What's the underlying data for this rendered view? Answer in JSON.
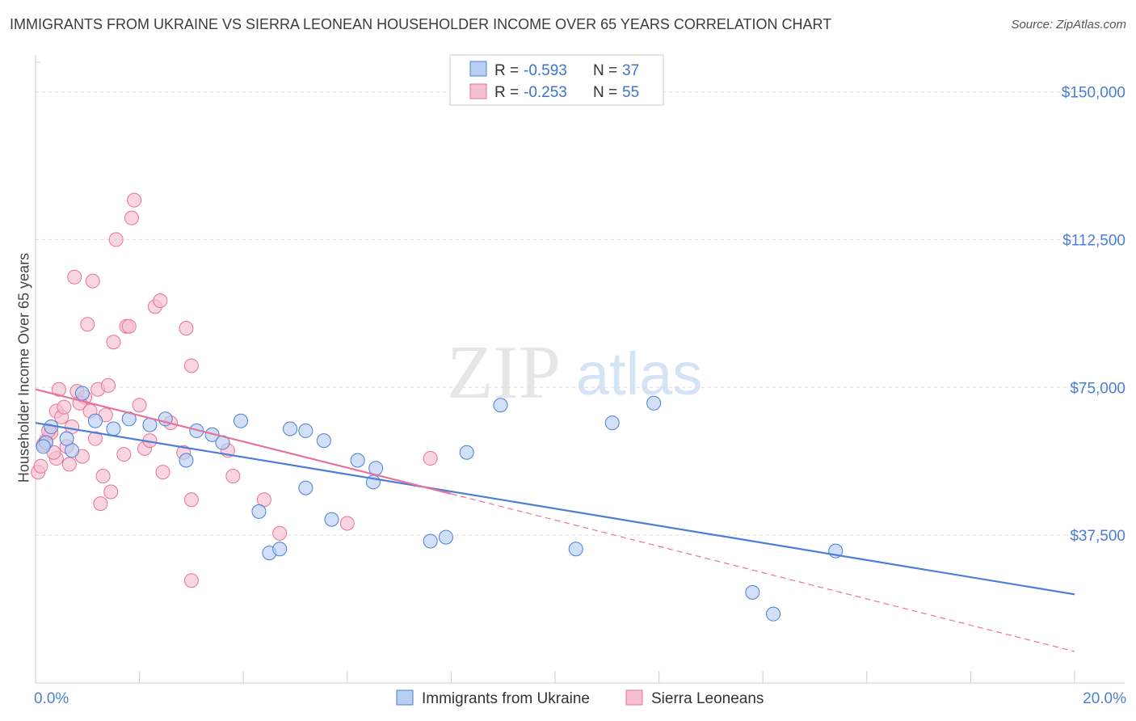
{
  "title": "IMMIGRANTS FROM UKRAINE VS SIERRA LEONEAN HOUSEHOLDER INCOME OVER 65 YEARS CORRELATION CHART",
  "source": "Source: ZipAtlas.com",
  "watermark": {
    "zip": "ZIP",
    "atlas": "atlas"
  },
  "legend_top": [
    {
      "r_label": "R =",
      "r_value": "-0.593",
      "n_label": "N =",
      "n_value": "37"
    },
    {
      "r_label": "R =",
      "r_value": "-0.253",
      "n_label": "N =",
      "n_value": "55"
    }
  ],
  "colors": {
    "blue": "#4a7fd4",
    "blue_fill": "#b8cff2",
    "pink": "#e8729a",
    "pink_fill": "#f6bfd1",
    "grid": "#dddddd"
  },
  "chart_data": {
    "type": "scatter",
    "xlabel": "",
    "ylabel": "Householder Income Over 65 years",
    "xlim": [
      0,
      20
    ],
    "ylim": [
      0,
      157500
    ],
    "x_tick_labels": [
      "0.0%",
      "20.0%"
    ],
    "y_ticks": [
      {
        "value": 37500,
        "label": "$37,500"
      },
      {
        "value": 75000,
        "label": "$75,000"
      },
      {
        "value": 112500,
        "label": "$112,500"
      },
      {
        "value": 150000,
        "label": "$150,000"
      }
    ],
    "series": [
      {
        "name": "Immigrants from Ukraine",
        "color": "#4a7fd4",
        "trend": {
          "x": [
            0,
            20
          ],
          "y": [
            66000,
            22500
          ]
        },
        "points": [
          [
            0.2,
            61000
          ],
          [
            0.3,
            65000
          ],
          [
            0.7,
            59000
          ],
          [
            0.9,
            73500
          ],
          [
            1.15,
            66500
          ],
          [
            1.5,
            64500
          ],
          [
            1.8,
            67000
          ],
          [
            2.2,
            65500
          ],
          [
            2.5,
            67000
          ],
          [
            2.9,
            56500
          ],
          [
            3.1,
            64000
          ],
          [
            3.4,
            63000
          ],
          [
            3.6,
            61000
          ],
          [
            3.95,
            66500
          ],
          [
            4.3,
            43500
          ],
          [
            4.5,
            33000
          ],
          [
            4.7,
            34000
          ],
          [
            4.9,
            64500
          ],
          [
            5.2,
            49500
          ],
          [
            5.2,
            64000
          ],
          [
            5.55,
            61500
          ],
          [
            5.7,
            41500
          ],
          [
            6.2,
            56500
          ],
          [
            6.5,
            51000
          ],
          [
            6.55,
            54500
          ],
          [
            7.6,
            36000
          ],
          [
            7.9,
            37000
          ],
          [
            8.3,
            58500
          ],
          [
            8.95,
            70500
          ],
          [
            10.4,
            34000
          ],
          [
            11.1,
            66000
          ],
          [
            11.9,
            71000
          ],
          [
            13.8,
            23000
          ],
          [
            14.2,
            17500
          ],
          [
            15.4,
            33500
          ],
          [
            0.15,
            60000
          ],
          [
            0.6,
            62000
          ]
        ]
      },
      {
        "name": "Sierra Leoneans",
        "color": "#e8729a",
        "trend": {
          "x": [
            0,
            8
          ],
          "y": [
            74500,
            48000
          ]
        },
        "trend_dashed": {
          "x": [
            8,
            20
          ],
          "y": [
            48000,
            8000
          ]
        },
        "points": [
          [
            0.05,
            53500
          ],
          [
            0.1,
            55000
          ],
          [
            0.15,
            60500
          ],
          [
            0.2,
            61500
          ],
          [
            0.3,
            63500
          ],
          [
            0.4,
            57000
          ],
          [
            0.4,
            69000
          ],
          [
            0.45,
            74500
          ],
          [
            0.5,
            67500
          ],
          [
            0.55,
            70000
          ],
          [
            0.6,
            60000
          ],
          [
            0.65,
            55500
          ],
          [
            0.7,
            65000
          ],
          [
            0.8,
            74000
          ],
          [
            0.9,
            57500
          ],
          [
            0.75,
            103000
          ],
          [
            0.95,
            72500
          ],
          [
            1.0,
            91000
          ],
          [
            1.1,
            102000
          ],
          [
            1.2,
            74500
          ],
          [
            1.25,
            45500
          ],
          [
            1.3,
            52500
          ],
          [
            1.35,
            68000
          ],
          [
            1.4,
            75500
          ],
          [
            1.45,
            48500
          ],
          [
            1.5,
            86500
          ],
          [
            1.55,
            112500
          ],
          [
            1.7,
            58000
          ],
          [
            1.75,
            90500
          ],
          [
            1.8,
            90500
          ],
          [
            1.85,
            118000
          ],
          [
            1.9,
            122500
          ],
          [
            2.0,
            70500
          ],
          [
            2.1,
            59500
          ],
          [
            2.2,
            61500
          ],
          [
            2.3,
            95500
          ],
          [
            2.4,
            97000
          ],
          [
            2.45,
            53500
          ],
          [
            2.6,
            66000
          ],
          [
            2.85,
            58500
          ],
          [
            2.9,
            90000
          ],
          [
            3.0,
            80500
          ],
          [
            3.0,
            46500
          ],
          [
            3.0,
            26000
          ],
          [
            3.7,
            59000
          ],
          [
            3.8,
            52500
          ],
          [
            4.4,
            46500
          ],
          [
            4.7,
            38000
          ],
          [
            6.0,
            40500
          ],
          [
            7.6,
            57000
          ],
          [
            1.15,
            62000
          ],
          [
            0.85,
            71000
          ],
          [
            0.25,
            64000
          ],
          [
            1.05,
            69000
          ],
          [
            0.35,
            58500
          ]
        ]
      }
    ]
  }
}
